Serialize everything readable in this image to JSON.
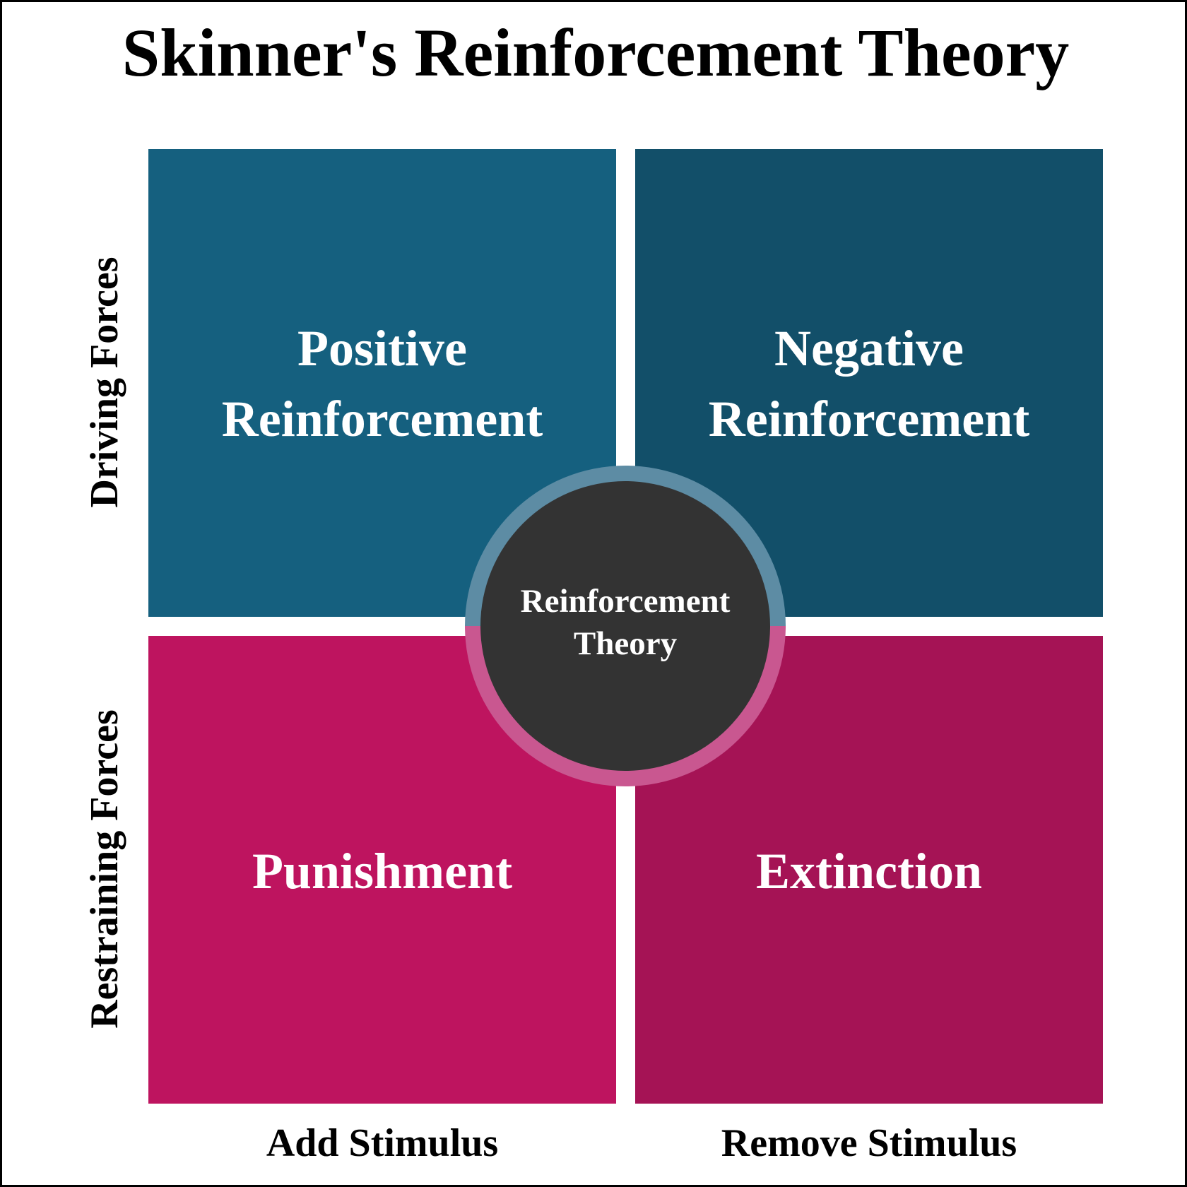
{
  "title": "Skinner's Reinforcement Theory",
  "colors": {
    "positive_reinforcement": "#15607f",
    "negative_reinforcement": "#124f69",
    "punishment": "#be145f",
    "extinction": "#a51355",
    "center_circle": "#333333",
    "ring_top": "#5d8ca4",
    "ring_bottom": "#c95790"
  },
  "quadrants": {
    "top_left": {
      "line1": "Positive",
      "line2": "Reinforcement"
    },
    "top_right": {
      "line1": "Negative",
      "line2": "Reinforcement"
    },
    "bottom_left": {
      "label": "Punishment"
    },
    "bottom_right": {
      "label": "Extinction"
    }
  },
  "center": {
    "line1": "Reinforcement",
    "line2": "Theory"
  },
  "axes": {
    "y_top": "Driving Forces",
    "y_bottom": "Restraining Forces",
    "x_left": "Add Stimulus",
    "x_right": "Remove Stimulus"
  }
}
